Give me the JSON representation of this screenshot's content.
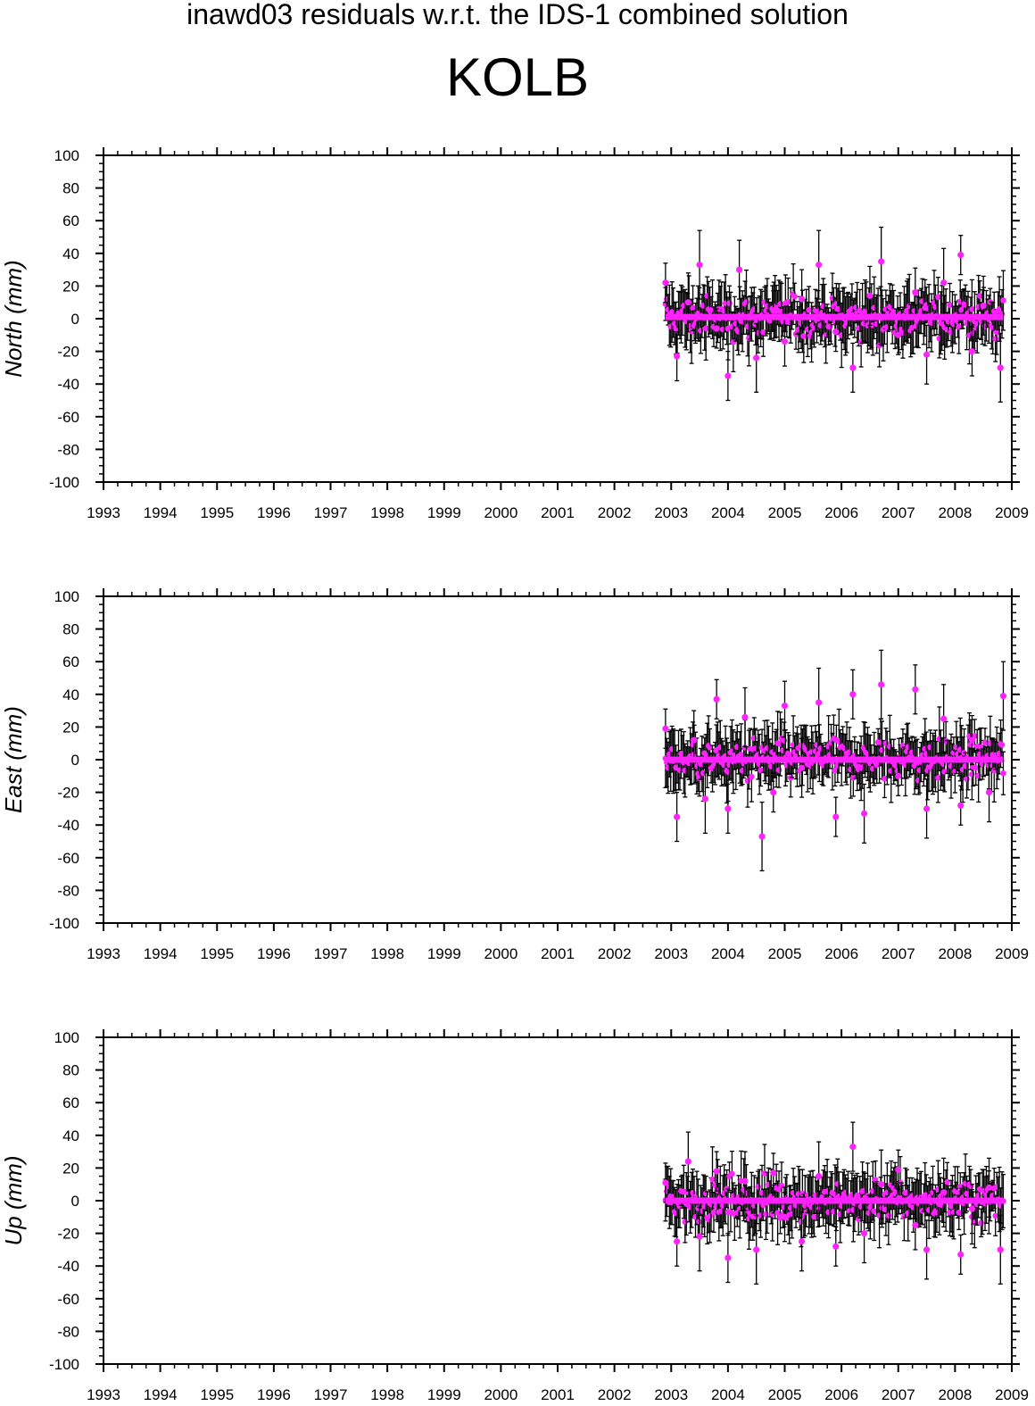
{
  "header": {
    "title": "inawd03 residuals w.r.t. the IDS-1 combined solution",
    "station": "KOLB"
  },
  "colors": {
    "marker": "#ff22ff",
    "error_bar": "#000000",
    "axis": "#000000",
    "background": "#ffffff"
  },
  "chart_data": [
    {
      "type": "scatter",
      "ylabel": "North (mm)",
      "xlim": [
        1993,
        2009
      ],
      "ylim": [
        -100,
        100
      ],
      "xticks": [
        "1993",
        "1994",
        "1995",
        "1996",
        "1997",
        "1998",
        "1999",
        "2000",
        "2001",
        "2002",
        "2003",
        "2004",
        "2005",
        "2006",
        "2007",
        "2008",
        "2009"
      ],
      "yticks": [
        "100",
        "80",
        "60",
        "40",
        "20",
        "0",
        "-20",
        "-40",
        "-60",
        "-80",
        "-100"
      ],
      "grid": false,
      "data_range_x": [
        2002.9,
        2008.85
      ],
      "mean": 1,
      "error_bars": true,
      "series": [
        {
          "x": [
            2002.9,
            2003.1,
            2003.3,
            2003.5,
            2003.8,
            2004.0,
            2004.2,
            2004.5,
            2004.8,
            2005.0,
            2005.3,
            2005.6,
            2005.9,
            2006.2,
            2006.5,
            2006.7,
            2007.0,
            2007.3,
            2007.5,
            2007.8,
            2008.1,
            2008.3,
            2008.5,
            2008.8
          ],
          "y": [
            22,
            -23,
            10,
            33,
            -6,
            -35,
            30,
            -24,
            5,
            -14,
            12,
            33,
            -8,
            -30,
            14,
            35,
            -10,
            16,
            -22,
            22,
            39,
            -20,
            8,
            -30
          ]
        }
      ]
    },
    {
      "type": "scatter",
      "ylabel": "East (mm)",
      "xlim": [
        1993,
        2009
      ],
      "ylim": [
        -100,
        100
      ],
      "xticks": [
        "1993",
        "1994",
        "1995",
        "1996",
        "1997",
        "1998",
        "1999",
        "2000",
        "2001",
        "2002",
        "2003",
        "2004",
        "2005",
        "2006",
        "2007",
        "2008",
        "2009"
      ],
      "yticks": [
        "100",
        "80",
        "60",
        "40",
        "20",
        "0",
        "-20",
        "-40",
        "-60",
        "-80",
        "-100"
      ],
      "grid": false,
      "data_range_x": [
        2002.9,
        2008.85
      ],
      "mean": 0,
      "error_bars": true,
      "series": [
        {
          "x": [
            2002.9,
            2003.1,
            2003.4,
            2003.6,
            2003.8,
            2004.0,
            2004.3,
            2004.6,
            2004.8,
            2005.0,
            2005.3,
            2005.6,
            2005.9,
            2006.2,
            2006.4,
            2006.7,
            2007.0,
            2007.3,
            2007.5,
            2007.8,
            2008.1,
            2008.3,
            2008.6,
            2008.85
          ],
          "y": [
            19,
            -35,
            12,
            -24,
            37,
            -30,
            26,
            -47,
            -20,
            33,
            -5,
            35,
            -35,
            40,
            -33,
            46,
            -10,
            43,
            -30,
            25,
            -28,
            12,
            -20,
            39
          ]
        }
      ]
    },
    {
      "type": "scatter",
      "ylabel": "Up (mm)",
      "xlim": [
        1993,
        2009
      ],
      "ylim": [
        -100,
        100
      ],
      "xticks": [
        "1993",
        "1994",
        "1995",
        "1996",
        "1997",
        "1998",
        "1999",
        "2000",
        "2001",
        "2002",
        "2003",
        "2004",
        "2005",
        "2006",
        "2007",
        "2008",
        "2009"
      ],
      "yticks": [
        "100",
        "80",
        "60",
        "40",
        "20",
        "0",
        "-20",
        "-40",
        "-60",
        "-80",
        "-100"
      ],
      "grid": false,
      "data_range_x": [
        2002.9,
        2008.85
      ],
      "mean": 0,
      "error_bars": true,
      "series": [
        {
          "x": [
            2002.9,
            2003.1,
            2003.3,
            2003.5,
            2003.8,
            2004.0,
            2004.3,
            2004.5,
            2004.8,
            2005.0,
            2005.3,
            2005.6,
            2005.9,
            2006.2,
            2006.4,
            2006.7,
            2007.0,
            2007.3,
            2007.5,
            2007.8,
            2008.1,
            2008.3,
            2008.6,
            2008.8
          ],
          "y": [
            11,
            -25,
            24,
            -22,
            18,
            -35,
            12,
            -30,
            17,
            -10,
            -25,
            15,
            -28,
            33,
            -20,
            10,
            19,
            -15,
            -30,
            5,
            -33,
            -5,
            8,
            -30
          ]
        }
      ]
    }
  ]
}
